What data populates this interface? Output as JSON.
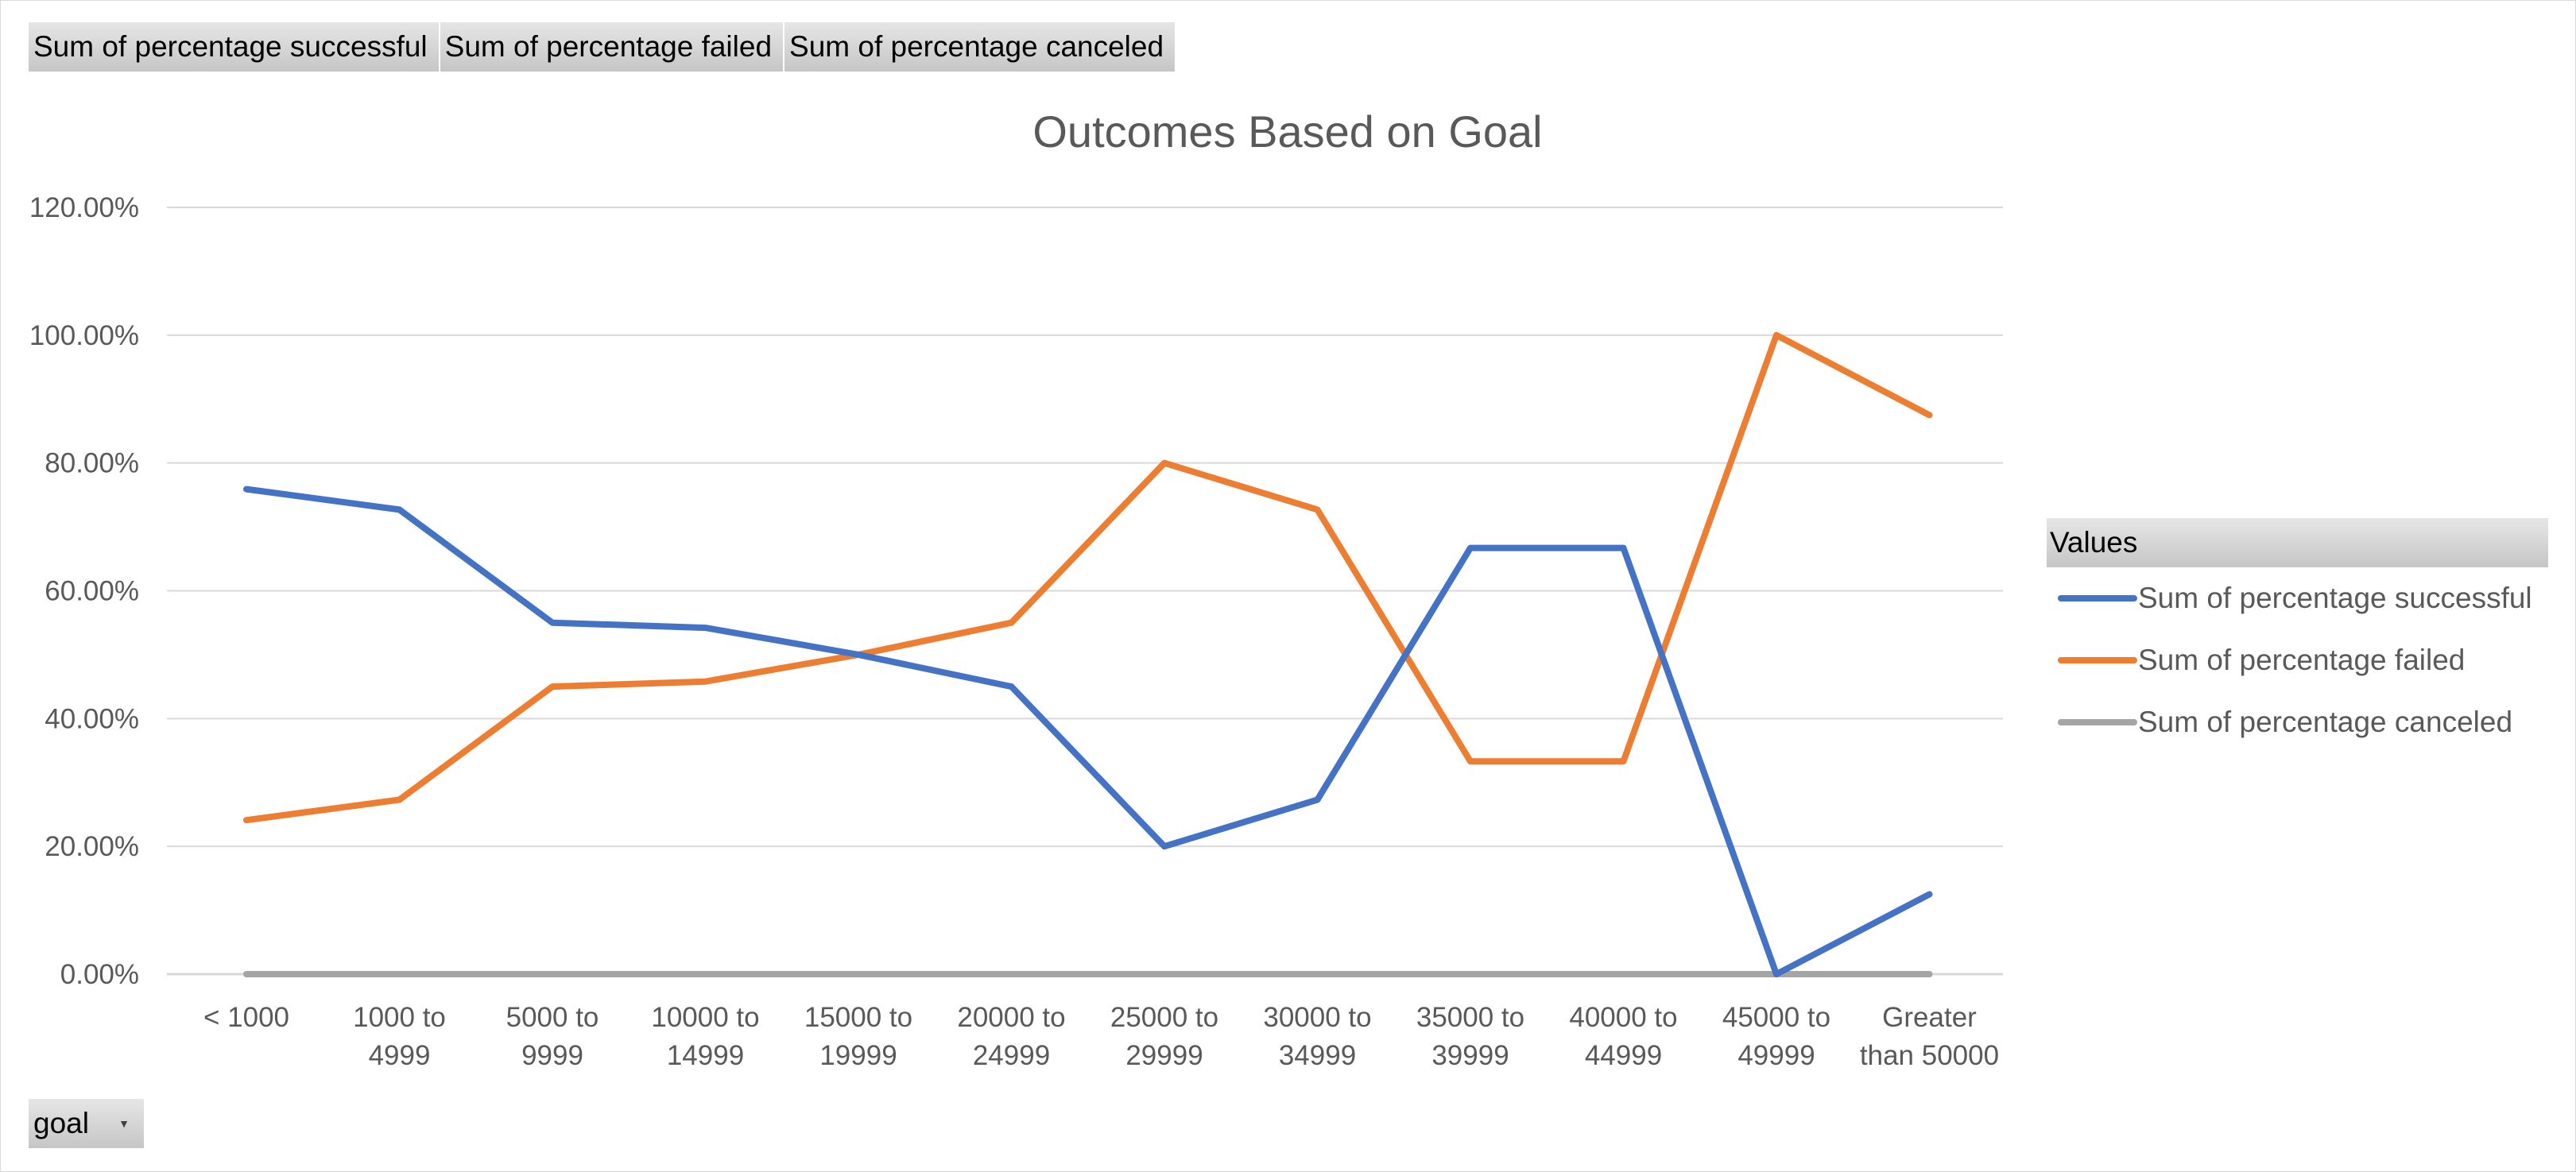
{
  "field_buttons": [
    "Sum of percentage  successful",
    "Sum of percentage  failed",
    "Sum of percentage  canceled"
  ],
  "axis_field_button": {
    "label": "goal",
    "icon": "dropdown-arrow-icon"
  },
  "legend": {
    "title": "Values",
    "items": [
      {
        "label": "Sum of percentage successful",
        "color": "#4472c4"
      },
      {
        "label": "Sum of percentage failed",
        "color": "#ed7d31"
      },
      {
        "label": "Sum of percentage canceled",
        "color": "#a5a5a5"
      }
    ]
  },
  "chart_data": {
    "type": "line",
    "title": "Outcomes Based on Goal",
    "xlabel": "",
    "ylabel": "",
    "categories": [
      [
        "< 1000"
      ],
      [
        "1000 to",
        "4999"
      ],
      [
        "5000 to",
        "9999"
      ],
      [
        "10000 to",
        "14999"
      ],
      [
        "15000 to",
        "19999"
      ],
      [
        "20000 to",
        "24999"
      ],
      [
        "25000 to",
        "29999"
      ],
      [
        "30000 to",
        "34999"
      ],
      [
        "35000 to",
        "39999"
      ],
      [
        "40000 to",
        "44999"
      ],
      [
        "45000 to",
        "49999"
      ],
      [
        "Greater",
        "than 50000"
      ]
    ],
    "y_ticks": [
      "0.00%",
      "20.00%",
      "40.00%",
      "60.00%",
      "80.00%",
      "100.00%",
      "120.00%"
    ],
    "ylim": [
      0,
      1.2
    ],
    "grid": true,
    "legend_position": "right",
    "series": [
      {
        "name": "Sum of percentage successful",
        "color": "#4472c4",
        "values": [
          0.759,
          0.727,
          0.55,
          0.542,
          0.5,
          0.45,
          0.2,
          0.273,
          0.667,
          0.667,
          0.0,
          0.125
        ]
      },
      {
        "name": "Sum of percentage failed",
        "color": "#ed7d31",
        "values": [
          0.241,
          0.273,
          0.45,
          0.458,
          0.5,
          0.55,
          0.8,
          0.727,
          0.333,
          0.333,
          1.0,
          0.875
        ]
      },
      {
        "name": "Sum of percentage canceled",
        "color": "#a5a5a5",
        "values": [
          0,
          0,
          0,
          0,
          0,
          0,
          0,
          0,
          0,
          0,
          0,
          0
        ]
      }
    ]
  }
}
